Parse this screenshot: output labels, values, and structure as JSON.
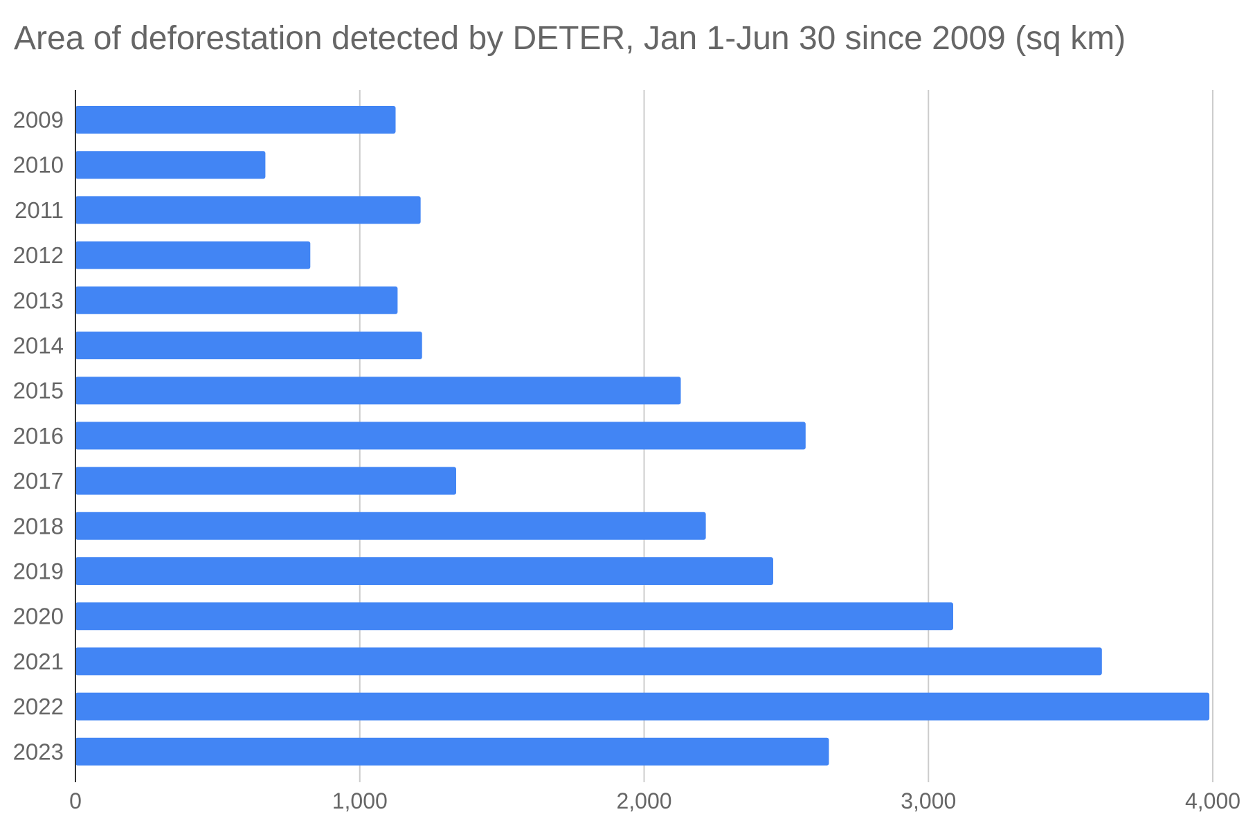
{
  "chart_data": {
    "type": "bar",
    "orientation": "horizontal",
    "title": "Area of deforestation detected by DETER, Jan 1-Jun 30 since 2009 (sq km)",
    "xlabel": "",
    "ylabel": "",
    "categories": [
      "2009",
      "2010",
      "2011",
      "2012",
      "2013",
      "2014",
      "2015",
      "2016",
      "2017",
      "2018",
      "2019",
      "2020",
      "2021",
      "2022",
      "2023"
    ],
    "values": [
      1126,
      668,
      1214,
      826,
      1133,
      1219,
      2129,
      2568,
      1339,
      2217,
      2454,
      3087,
      3610,
      3988,
      2650
    ],
    "xlim": [
      0,
      4000
    ],
    "x_ticks": [
      0,
      1000,
      2000,
      3000,
      4000
    ],
    "x_tick_labels": [
      "0",
      "1,000",
      "2,000",
      "3,000",
      "4,000"
    ],
    "grid": true,
    "legend": "none",
    "bar_color": "#4285f4",
    "grid_color": "#cccccc",
    "text_color": "#666666"
  }
}
